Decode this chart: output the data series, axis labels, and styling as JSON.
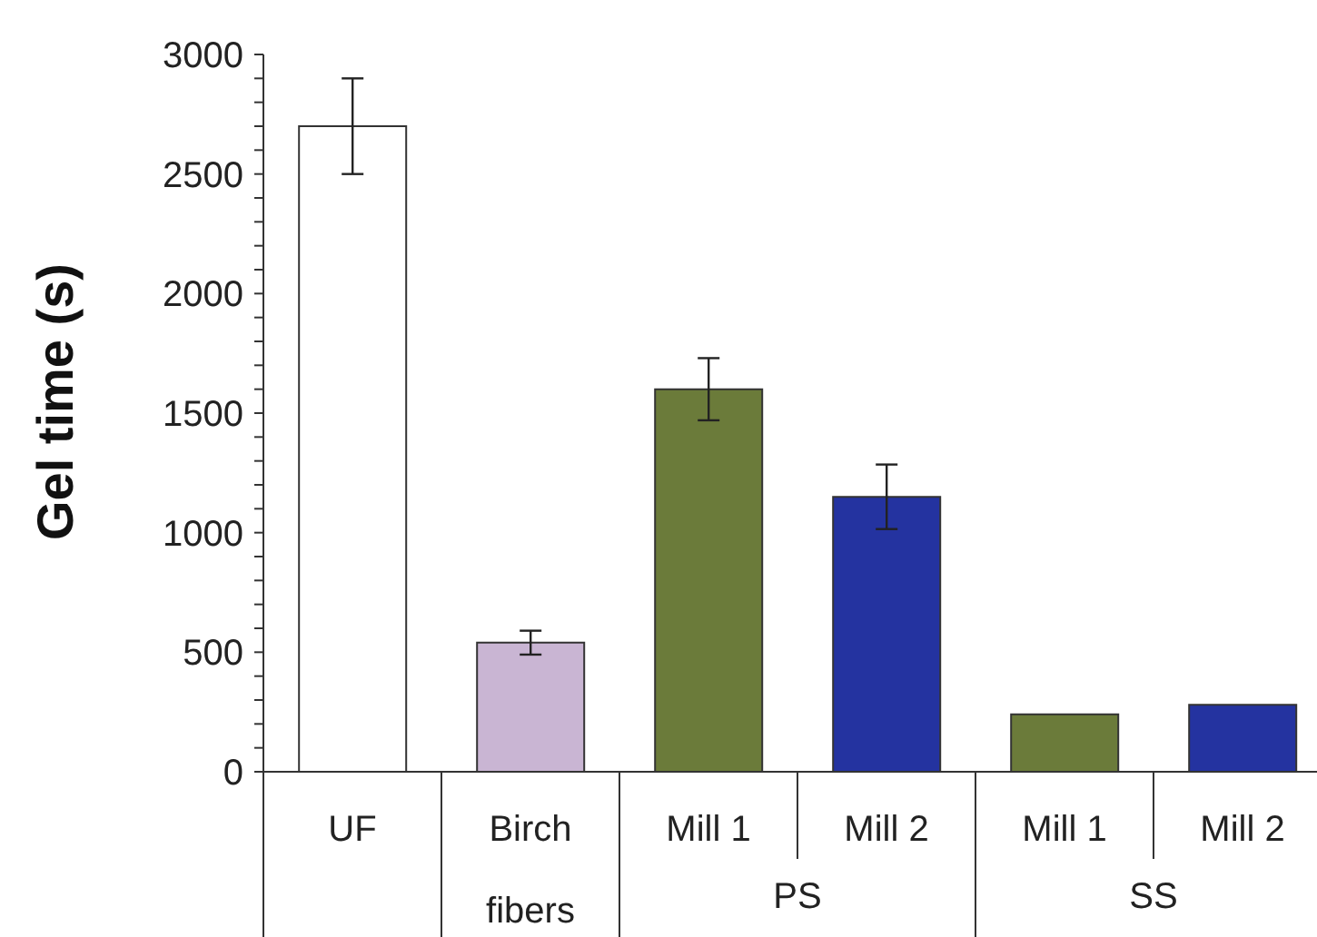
{
  "chart_data": {
    "type": "bar",
    "ylabel": "Gel time (s)",
    "categories": [
      "UF",
      "Birch fibers",
      "Mill 1",
      "Mill 2",
      "Mill 1",
      "Mill 2"
    ],
    "values": [
      2700,
      540,
      1600,
      1150,
      240,
      280
    ],
    "errors": [
      200,
      50,
      130,
      135,
      null,
      null
    ],
    "colors": [
      "#ffffff",
      "#c9b5d3",
      "#6b7b3a",
      "#2433a0",
      "#6b7b3a",
      "#2433a0"
    ],
    "annotations": [
      "PS",
      "SS"
    ],
    "ylim": [
      0,
      3000
    ],
    "yticks": [
      0,
      {
        "value": 100,
        "label": null
      },
      {
        "value": 200,
        "label": null
      },
      {
        "value": 300,
        "label": null
      },
      {
        "value": 400,
        "label": null
      },
      500,
      {
        "value": 600,
        "label": null
      },
      {
        "value": 700,
        "label": null
      },
      {
        "value": 800,
        "label": null
      },
      {
        "value": 900,
        "label": null
      },
      1000,
      {
        "value": 1100,
        "label": null
      },
      {
        "value": 1200,
        "label": null
      },
      {
        "value": 1300,
        "label": null
      },
      {
        "value": 1400,
        "label": null
      },
      1500,
      {
        "value": 1600,
        "label": null
      },
      {
        "value": 1700,
        "label": null
      },
      {
        "value": 1800,
        "label": null
      },
      {
        "value": 1900,
        "label": null
      },
      2000,
      {
        "value": 2100,
        "label": null
      },
      {
        "value": 2200,
        "label": null
      },
      {
        "value": 2300,
        "label": null
      },
      {
        "value": 2400,
        "label": null
      },
      2500,
      {
        "value": 2600,
        "label": null
      },
      {
        "value": 2700,
        "label": null
      },
      {
        "value": 2800,
        "label": null
      },
      {
        "value": 2900,
        "label": null
      },
      3000
    ],
    "grid": false,
    "legend": false
  }
}
